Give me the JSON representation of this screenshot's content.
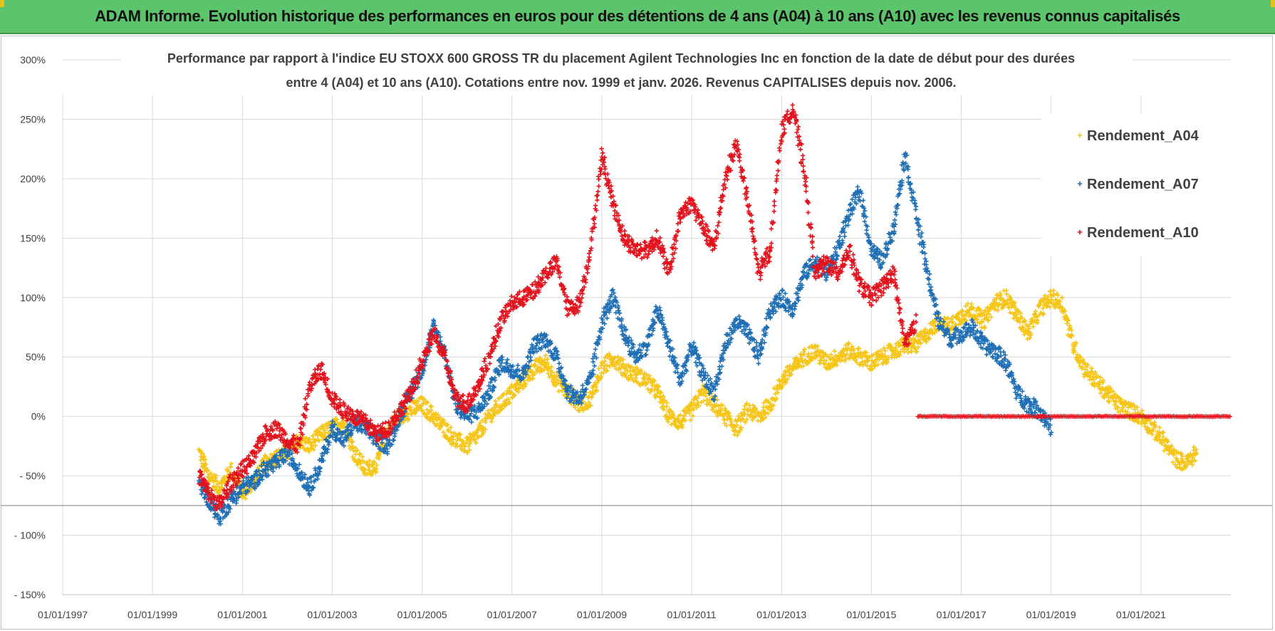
{
  "header": {
    "title": "ADAM Informe. Evolution historique des performances en euros pour des détentions de 4 ans (A04) à 10 ans (A10) avec les revenus connus capitalisés"
  },
  "chart_data": {
    "type": "scatter",
    "title_lines": [
      "Performance par rapport à l'indice EU STOXX 600 GROSS TR  du placement Agilent Technologies Inc en fonction de la date de début pour des durées",
      "entre 4 (A04) et 10 ans (A10). Cotations entre nov. 1999 et janv. 2026. Revenus CAPITALISES depuis nov. 2006."
    ],
    "xlabel": "",
    "ylabel": "",
    "x_ticks": [
      "01/01/1997",
      "01/01/1999",
      "01/01/2001",
      "01/01/2003",
      "01/01/2005",
      "01/01/2007",
      "01/01/2009",
      "01/01/2011",
      "01/01/2013",
      "01/01/2015",
      "01/01/2017",
      "01/01/2019",
      "01/01/2021"
    ],
    "y_ticks": [
      "300%",
      "250%",
      "200%",
      "150%",
      "100%",
      "50%",
      "0%",
      "- 50%",
      "- 100%",
      "- 150%"
    ],
    "xlim": [
      "1997-01-01",
      "2023-01-01"
    ],
    "ylim": [
      -150,
      300
    ],
    "grid": true,
    "legend_position": "top-right",
    "marker": "+",
    "series": [
      {
        "name": "Rendement_A04",
        "color": "#f5c518",
        "x": [
          "2000-01-15",
          "2000-04-01",
          "2000-07-01",
          "2000-10-01",
          "2001-01-01",
          "2001-04-01",
          "2001-07-01",
          "2001-10-01",
          "2002-01-01",
          "2002-04-01",
          "2002-07-01",
          "2002-10-01",
          "2003-01-01",
          "2003-04-01",
          "2003-07-01",
          "2003-10-01",
          "2004-01-01",
          "2004-04-01",
          "2004-07-01",
          "2004-10-01",
          "2005-01-01",
          "2005-04-01",
          "2005-07-01",
          "2005-10-01",
          "2006-01-01",
          "2006-04-01",
          "2006-07-01",
          "2006-10-01",
          "2007-01-01",
          "2007-04-01",
          "2007-07-01",
          "2007-10-01",
          "2008-01-01",
          "2008-04-01",
          "2008-07-01",
          "2008-10-01",
          "2009-01-01",
          "2009-04-01",
          "2009-07-01",
          "2009-10-01",
          "2010-01-01",
          "2010-04-01",
          "2010-07-01",
          "2010-10-01",
          "2011-01-01",
          "2011-04-01",
          "2011-07-01",
          "2011-10-01",
          "2012-01-01",
          "2012-04-01",
          "2012-07-01",
          "2012-10-01",
          "2013-01-01",
          "2013-04-01",
          "2013-07-01",
          "2013-10-01",
          "2014-01-01",
          "2014-04-01",
          "2014-07-01",
          "2014-10-01",
          "2015-01-01",
          "2015-04-01",
          "2015-07-01",
          "2015-10-01",
          "2016-01-01",
          "2016-04-01",
          "2016-07-01",
          "2016-10-01",
          "2017-01-01",
          "2017-04-01",
          "2017-07-01",
          "2017-10-01",
          "2018-01-01",
          "2018-04-01",
          "2018-07-01",
          "2018-10-01",
          "2019-01-01",
          "2019-04-01",
          "2019-07-01",
          "2019-10-01",
          "2020-01-01",
          "2020-04-01",
          "2020-07-01",
          "2020-10-01",
          "2021-01-01",
          "2021-04-01",
          "2021-07-01",
          "2021-10-01",
          "2022-01-01",
          "2022-04-01"
        ],
        "y": [
          -30,
          -50,
          -60,
          -45,
          -65,
          -55,
          -40,
          -35,
          -30,
          -20,
          -25,
          -15,
          -10,
          -5,
          -30,
          -45,
          -40,
          -10,
          0,
          5,
          10,
          0,
          -10,
          -20,
          -25,
          -15,
          0,
          10,
          20,
          30,
          40,
          45,
          30,
          20,
          10,
          15,
          40,
          50,
          40,
          35,
          30,
          20,
          0,
          -5,
          5,
          20,
          10,
          0,
          -10,
          5,
          0,
          10,
          30,
          40,
          50,
          55,
          45,
          50,
          55,
          50,
          45,
          50,
          55,
          60,
          60,
          70,
          80,
          75,
          85,
          90,
          80,
          95,
          100,
          85,
          70,
          90,
          100,
          95,
          60,
          40,
          30,
          20,
          10,
          5,
          0,
          -10,
          -20,
          -35,
          -40,
          -30
        ]
      },
      {
        "name": "Rendement_A07",
        "color": "#1f6fb5",
        "x": [
          "2000-01-15",
          "2000-04-01",
          "2000-07-01",
          "2000-10-01",
          "2001-01-01",
          "2001-04-01",
          "2001-07-01",
          "2001-10-01",
          "2002-01-01",
          "2002-04-01",
          "2002-07-01",
          "2002-10-01",
          "2003-01-01",
          "2003-04-01",
          "2003-07-01",
          "2003-10-01",
          "2004-01-01",
          "2004-04-01",
          "2004-07-01",
          "2004-10-01",
          "2005-01-01",
          "2005-04-01",
          "2005-07-01",
          "2005-10-01",
          "2006-01-01",
          "2006-04-01",
          "2006-07-01",
          "2006-10-01",
          "2007-01-01",
          "2007-04-01",
          "2007-07-01",
          "2007-10-01",
          "2008-01-01",
          "2008-04-01",
          "2008-07-01",
          "2008-10-01",
          "2009-01-01",
          "2009-04-01",
          "2009-07-01",
          "2009-10-01",
          "2010-01-01",
          "2010-04-01",
          "2010-07-01",
          "2010-10-01",
          "2011-01-01",
          "2011-04-01",
          "2011-07-01",
          "2011-10-01",
          "2012-01-01",
          "2012-04-01",
          "2012-07-01",
          "2012-10-01",
          "2013-01-01",
          "2013-04-01",
          "2013-07-01",
          "2013-10-01",
          "2014-01-01",
          "2014-04-01",
          "2014-07-01",
          "2014-10-01",
          "2015-01-01",
          "2015-04-01",
          "2015-07-01",
          "2015-10-01",
          "2016-01-01",
          "2016-04-01",
          "2016-07-01",
          "2016-10-01",
          "2017-01-01",
          "2017-04-01",
          "2017-07-01",
          "2017-10-01",
          "2018-01-01",
          "2018-04-01",
          "2018-07-01",
          "2018-10-01",
          "2019-01-01"
        ],
        "y": [
          -55,
          -70,
          -85,
          -70,
          -60,
          -55,
          -45,
          -40,
          -30,
          -45,
          -60,
          -40,
          -10,
          -20,
          -5,
          -10,
          -20,
          -25,
          0,
          20,
          40,
          75,
          55,
          10,
          0,
          5,
          20,
          45,
          40,
          35,
          60,
          65,
          50,
          20,
          15,
          30,
          80,
          100,
          70,
          50,
          60,
          90,
          60,
          30,
          60,
          35,
          20,
          60,
          80,
          70,
          50,
          90,
          100,
          90,
          120,
          130,
          120,
          140,
          170,
          190,
          140,
          130,
          160,
          220,
          170,
          120,
          80,
          65,
          70,
          75,
          60,
          55,
          45,
          20,
          10,
          5,
          -10
        ]
      },
      {
        "name": "Rendement_A10",
        "color": "#e3121c",
        "x": [
          "2000-01-15",
          "2000-04-01",
          "2000-07-01",
          "2000-10-01",
          "2001-01-01",
          "2001-04-01",
          "2001-07-01",
          "2001-10-01",
          "2002-01-01",
          "2002-04-01",
          "2002-07-01",
          "2002-10-01",
          "2003-01-01",
          "2003-04-01",
          "2003-07-01",
          "2003-10-01",
          "2004-01-01",
          "2004-04-01",
          "2004-07-01",
          "2004-10-01",
          "2005-01-01",
          "2005-04-01",
          "2005-07-01",
          "2005-10-01",
          "2006-01-01",
          "2006-04-01",
          "2006-07-01",
          "2006-10-01",
          "2007-01-01",
          "2007-04-01",
          "2007-07-01",
          "2007-10-01",
          "2008-01-01",
          "2008-04-01",
          "2008-07-01",
          "2008-10-01",
          "2009-01-01",
          "2009-04-01",
          "2009-07-01",
          "2009-10-01",
          "2010-01-01",
          "2010-04-01",
          "2010-07-01",
          "2010-10-01",
          "2011-01-01",
          "2011-04-01",
          "2011-07-01",
          "2011-10-01",
          "2012-01-01",
          "2012-04-01",
          "2012-07-01",
          "2012-10-01",
          "2013-01-01",
          "2013-04-01",
          "2013-07-01",
          "2013-10-01",
          "2014-01-01",
          "2014-04-01",
          "2014-07-01",
          "2014-10-01",
          "2015-01-01",
          "2015-04-01",
          "2015-07-01",
          "2015-10-01",
          "2016-01-01"
        ],
        "y": [
          -50,
          -65,
          -75,
          -55,
          -45,
          -35,
          -15,
          -10,
          -20,
          -25,
          25,
          40,
          15,
          5,
          0,
          -5,
          -15,
          -10,
          5,
          20,
          45,
          70,
          50,
          15,
          10,
          25,
          50,
          80,
          95,
          100,
          105,
          120,
          130,
          90,
          95,
          140,
          220,
          180,
          150,
          140,
          140,
          150,
          120,
          170,
          180,
          160,
          140,
          200,
          230,
          180,
          120,
          140,
          240,
          260,
          210,
          120,
          130,
          120,
          140,
          110,
          100,
          110,
          120,
          60,
          80
        ]
      },
      {
        "name": "",
        "color": "#e3121c",
        "x": [
          "2016-01-15",
          "2023-01-01"
        ],
        "y": [
          0,
          0
        ],
        "style": "flat-line"
      }
    ]
  }
}
